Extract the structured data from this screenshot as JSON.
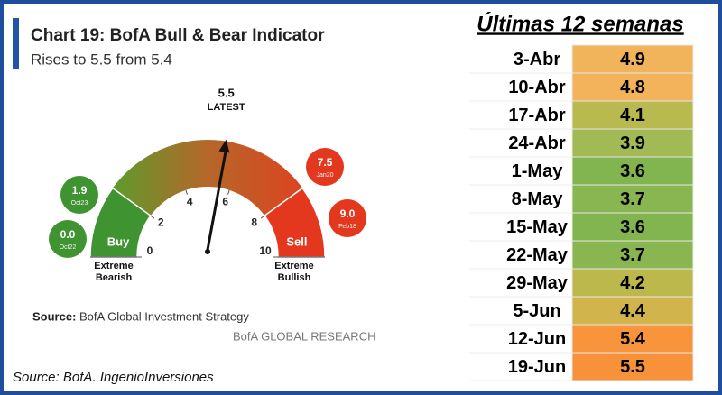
{
  "chart_data": {
    "type": "gauge",
    "title": "Chart 19: BofA Bull & Bear Indicator",
    "subtitle": "Rises to 5.5 from 5.4",
    "value": 5.5,
    "value_caption": "LATEST",
    "xlim": [
      0,
      10
    ],
    "xticks": [
      0,
      2,
      4,
      6,
      8,
      10
    ],
    "zones": [
      {
        "label": "Buy",
        "from": 0,
        "to": 2,
        "color": "#3f9330",
        "end_label": [
          "Extreme",
          "Bearish"
        ]
      },
      {
        "label": "Sell",
        "from": 8,
        "to": 10,
        "color": "#e3381d",
        "end_label": [
          "Extreme",
          "Bullish"
        ]
      }
    ],
    "gradient": [
      "#5e9b2c",
      "#b5672a",
      "#dc4420"
    ],
    "markers": {
      "values": [
        1.9,
        0,
        7.5,
        9.0
      ],
      "value_labels": [
        "1.9",
        "0.0",
        "7.5",
        "9.0"
      ],
      "dates": [
        "Oct23",
        "Oct22",
        "Jan20",
        "Feb18"
      ],
      "colors": [
        "#3f9330",
        "#3f9330",
        "#e3381d",
        "#e3381d"
      ]
    },
    "source_label": "Source:",
    "source_text": "BofA Global Investment Strategy",
    "brand": "BofA GLOBAL RESEARCH"
  },
  "table": {
    "title": "Últimas 12 semanas",
    "rows": [
      [
        "3-Abr",
        4.9
      ],
      [
        "10-Abr",
        4.8
      ],
      [
        "17-Abr",
        4.1
      ],
      [
        "24-Abr",
        3.9
      ],
      [
        "1-May",
        3.6
      ],
      [
        "8-May",
        3.7
      ],
      [
        "15-May",
        3.6
      ],
      [
        "22-May",
        3.7
      ],
      [
        "29-May",
        4.2
      ],
      [
        "5-Jun",
        4.4
      ],
      [
        "12-Jun",
        5.4
      ],
      [
        "19-Jun",
        5.5
      ]
    ],
    "colors": [
      "#f2b45a",
      "#f2b35a",
      "#b8b94f",
      "#a1ba55",
      "#82b44f",
      "#8ab652",
      "#82b44f",
      "#8ab652",
      "#bdb84c",
      "#d2b44c",
      "#f7943c",
      "#f7913a"
    ]
  },
  "footer": "Source: BofA. IngenioInversiones"
}
